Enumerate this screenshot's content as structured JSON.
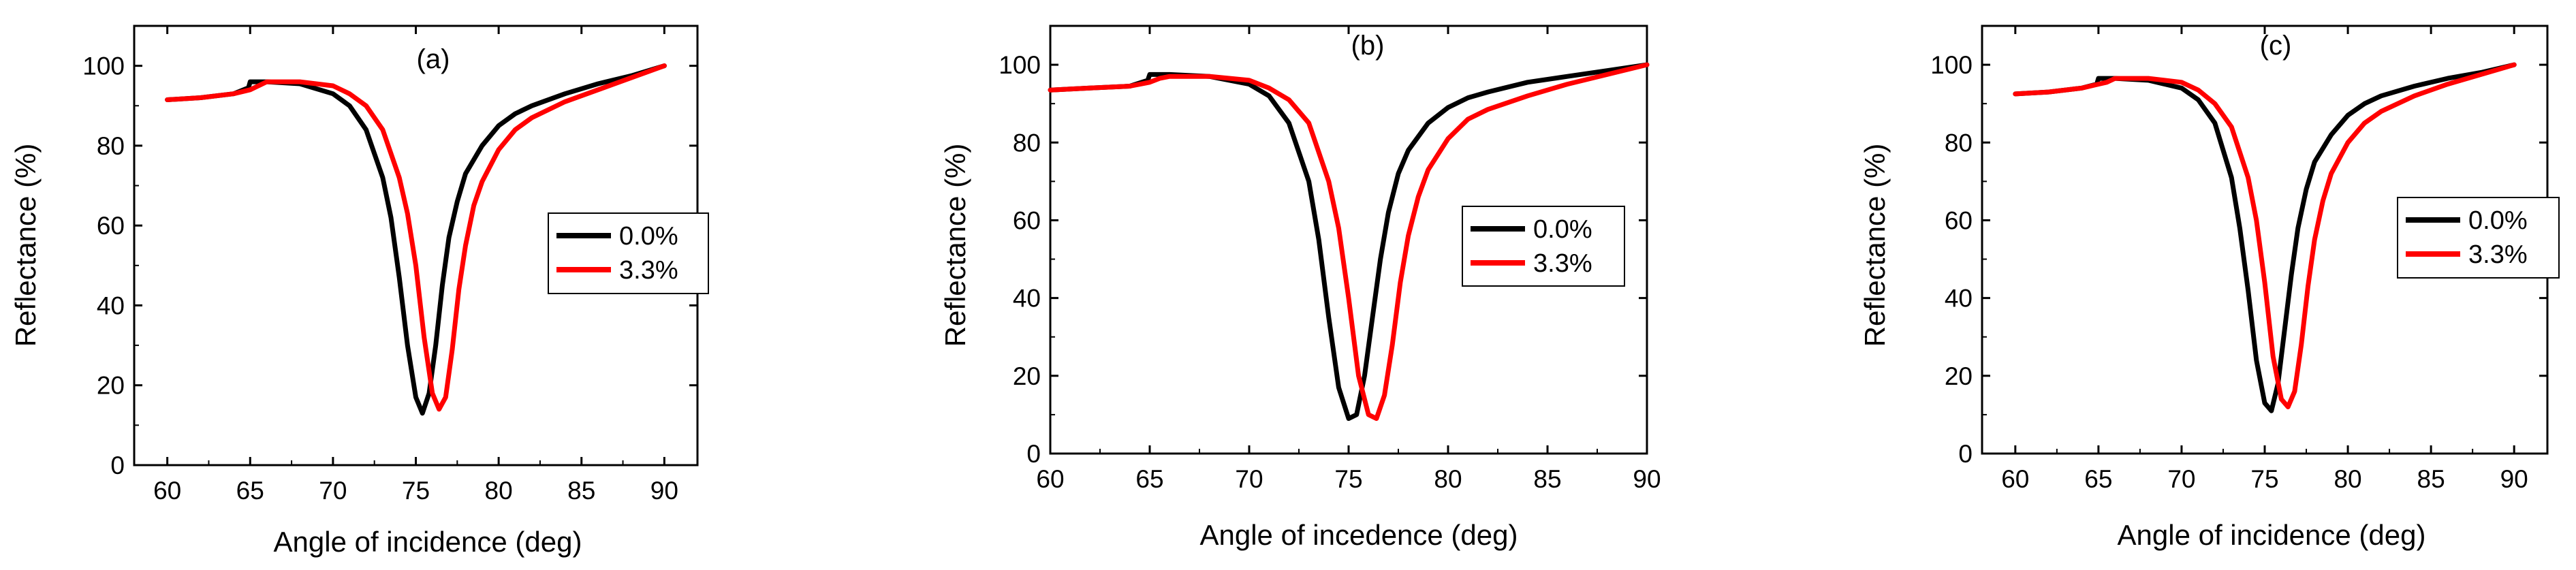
{
  "colors": {
    "series0": "#000000",
    "series1": "#ff0000",
    "axis": "#000000"
  },
  "chart_data": [
    {
      "type": "line",
      "panel_label": "(a)",
      "xlabel": "Angle of incidence (deg)",
      "ylabel": "Reflectance (%)",
      "xlim": [
        58,
        92
      ],
      "ylim": [
        0,
        110
      ],
      "xticks": [
        60,
        65,
        70,
        75,
        80,
        85,
        90
      ],
      "yticks": [
        0,
        20,
        40,
        60,
        80,
        100
      ],
      "tick_labels_x": [
        "60",
        "65",
        "70",
        "75",
        "80",
        "85",
        "90"
      ],
      "tick_labels_y": [
        "0",
        "20",
        "40",
        "60",
        "80",
        "100"
      ],
      "legend": [
        "0.0%",
        "3.3%"
      ],
      "legend_position": "right",
      "series": [
        {
          "name": "0.0%",
          "x": [
            60,
            62,
            64,
            64.9,
            65.0,
            66,
            68,
            70,
            71,
            72,
            73,
            73.5,
            74,
            74.5,
            75,
            75.4,
            75.8,
            76.2,
            76.6,
            77,
            77.5,
            78,
            79,
            80,
            81,
            82,
            84,
            86,
            88,
            90
          ],
          "y": [
            91.5,
            92,
            93,
            94.5,
            96,
            96,
            95.5,
            93,
            90,
            84,
            72,
            62,
            47,
            30,
            17,
            13,
            18,
            30,
            45,
            57,
            66,
            73,
            80,
            85,
            88,
            90,
            93,
            95.5,
            97.5,
            100
          ]
        },
        {
          "name": "3.3%",
          "x": [
            60,
            62,
            64,
            65,
            65.5,
            66,
            68,
            70,
            71,
            72,
            73,
            74,
            74.5,
            75,
            75.5,
            76,
            76.4,
            76.8,
            77.2,
            77.6,
            78,
            78.5,
            79,
            80,
            81,
            82,
            84,
            86,
            88,
            90
          ],
          "y": [
            91.5,
            92,
            93,
            94,
            95,
            96,
            96,
            95,
            93,
            90,
            84,
            72,
            63,
            50,
            32,
            18,
            14,
            17,
            29,
            44,
            55,
            65,
            71,
            79,
            84,
            87,
            91,
            94,
            97,
            100
          ]
        }
      ]
    },
    {
      "type": "line",
      "panel_label": "(b)",
      "xlabel": "Angle of incedence (deg)",
      "ylabel": "Reflectance (%)",
      "xlim": [
        60,
        90
      ],
      "ylim": [
        0,
        110
      ],
      "xticks": [
        60,
        65,
        70,
        75,
        80,
        85,
        90
      ],
      "yticks": [
        0,
        20,
        40,
        60,
        80,
        100
      ],
      "tick_labels_x": [
        "60",
        "65",
        "70",
        "75",
        "80",
        "85",
        "90"
      ],
      "tick_labels_y": [
        "0",
        "20",
        "40",
        "60",
        "80",
        "100"
      ],
      "legend": [
        "0.0%",
        "3.3%"
      ],
      "legend_position": "right",
      "series": [
        {
          "name": "0.0%",
          "x": [
            60,
            62,
            64,
            64.9,
            65.0,
            66,
            68,
            70,
            71,
            72,
            73,
            73.5,
            74,
            74.5,
            75,
            75.4,
            75.8,
            76.2,
            76.6,
            77,
            77.5,
            78,
            79,
            80,
            81,
            82,
            84,
            86,
            88,
            90
          ],
          "y": [
            93.5,
            94,
            94.5,
            96,
            97.5,
            97.5,
            97,
            95,
            92,
            85,
            70,
            55,
            35,
            17,
            9,
            10,
            20,
            35,
            50,
            62,
            72,
            78,
            85,
            89,
            91.5,
            93,
            95.5,
            97,
            98.5,
            100
          ]
        },
        {
          "name": "3.3%",
          "x": [
            60,
            62,
            64,
            65,
            65.5,
            66,
            68,
            70,
            71,
            72,
            73,
            74,
            74.5,
            75,
            75.5,
            76,
            76.4,
            76.8,
            77.2,
            77.6,
            78,
            78.5,
            79,
            80,
            81,
            82,
            84,
            86,
            88,
            90
          ],
          "y": [
            93.5,
            94,
            94.5,
            95.5,
            96.5,
            97,
            97,
            96,
            94,
            91,
            85,
            70,
            58,
            40,
            20,
            10,
            9,
            15,
            28,
            44,
            56,
            66,
            73,
            81,
            86,
            88.5,
            92,
            95,
            97.5,
            100
          ]
        }
      ]
    },
    {
      "type": "line",
      "panel_label": "(c)",
      "xlabel": "Angle of incidence (deg)",
      "ylabel": "Reflectance (%)",
      "xlim": [
        58,
        92
      ],
      "ylim": [
        0,
        110
      ],
      "xticks": [
        60,
        65,
        70,
        75,
        80,
        85,
        90
      ],
      "yticks": [
        0,
        20,
        40,
        60,
        80,
        100
      ],
      "tick_labels_x": [
        "60",
        "65",
        "70",
        "75",
        "80",
        "85",
        "90"
      ],
      "tick_labels_y": [
        "0",
        "20",
        "40",
        "60",
        "80",
        "100"
      ],
      "legend": [
        "0.0%",
        "3.3%"
      ],
      "legend_position": "right",
      "series": [
        {
          "name": "0.0%",
          "x": [
            60,
            62,
            64,
            64.9,
            65.0,
            66,
            68,
            70,
            71,
            72,
            73,
            73.5,
            74,
            74.5,
            75,
            75.4,
            75.8,
            76.2,
            76.6,
            77,
            77.5,
            78,
            79,
            80,
            81,
            82,
            84,
            86,
            88,
            90
          ],
          "y": [
            92.5,
            93,
            94,
            95,
            96.5,
            96.5,
            96,
            94,
            91,
            85,
            71,
            58,
            42,
            24,
            13,
            11,
            18,
            32,
            46,
            58,
            68,
            75,
            82,
            87,
            90,
            92,
            94.5,
            96.5,
            98,
            100
          ]
        },
        {
          "name": "3.3%",
          "x": [
            60,
            62,
            64,
            65,
            65.5,
            66,
            68,
            70,
            71,
            72,
            73,
            74,
            74.5,
            75,
            75.5,
            76,
            76.4,
            76.8,
            77.2,
            77.6,
            78,
            78.5,
            79,
            80,
            81,
            82,
            84,
            86,
            88,
            90
          ],
          "y": [
            92.5,
            93,
            94,
            95,
            95.5,
            96.5,
            96.5,
            95.5,
            93.5,
            90,
            84,
            71,
            60,
            44,
            25,
            14,
            12,
            16,
            28,
            43,
            55,
            65,
            72,
            80,
            85,
            88,
            92,
            95,
            97.5,
            100
          ]
        }
      ]
    }
  ]
}
